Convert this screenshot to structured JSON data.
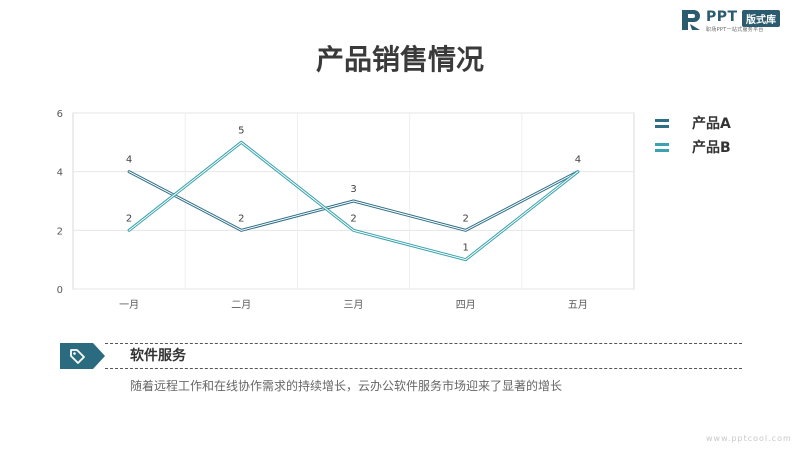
{
  "brand": {
    "name": "PPT",
    "tag": "版式库",
    "tagline": "职场PPT一站式服务平台"
  },
  "title": "产品销售情况",
  "chart_data": {
    "type": "line",
    "categories": [
      "一月",
      "二月",
      "三月",
      "四月",
      "五月"
    ],
    "series": [
      {
        "name": "产品A",
        "values": [
          4,
          2,
          3,
          2,
          4
        ],
        "color": "#2e6f86"
      },
      {
        "name": "产品B",
        "values": [
          2,
          5,
          2,
          1,
          4
        ],
        "color": "#3aa3ad"
      }
    ],
    "ylim": [
      0,
      6
    ],
    "yticks": [
      0,
      2,
      4,
      6
    ],
    "xlabel": "",
    "ylabel": "",
    "grid": true,
    "legend": "right"
  },
  "service": {
    "title": "软件服务",
    "description": "随着远程工作和在线协作需求的持续增长，云办公软件服务市场迎来了显著的增长",
    "icon": "tag-icon"
  },
  "watermark": "www.pptcool.com"
}
